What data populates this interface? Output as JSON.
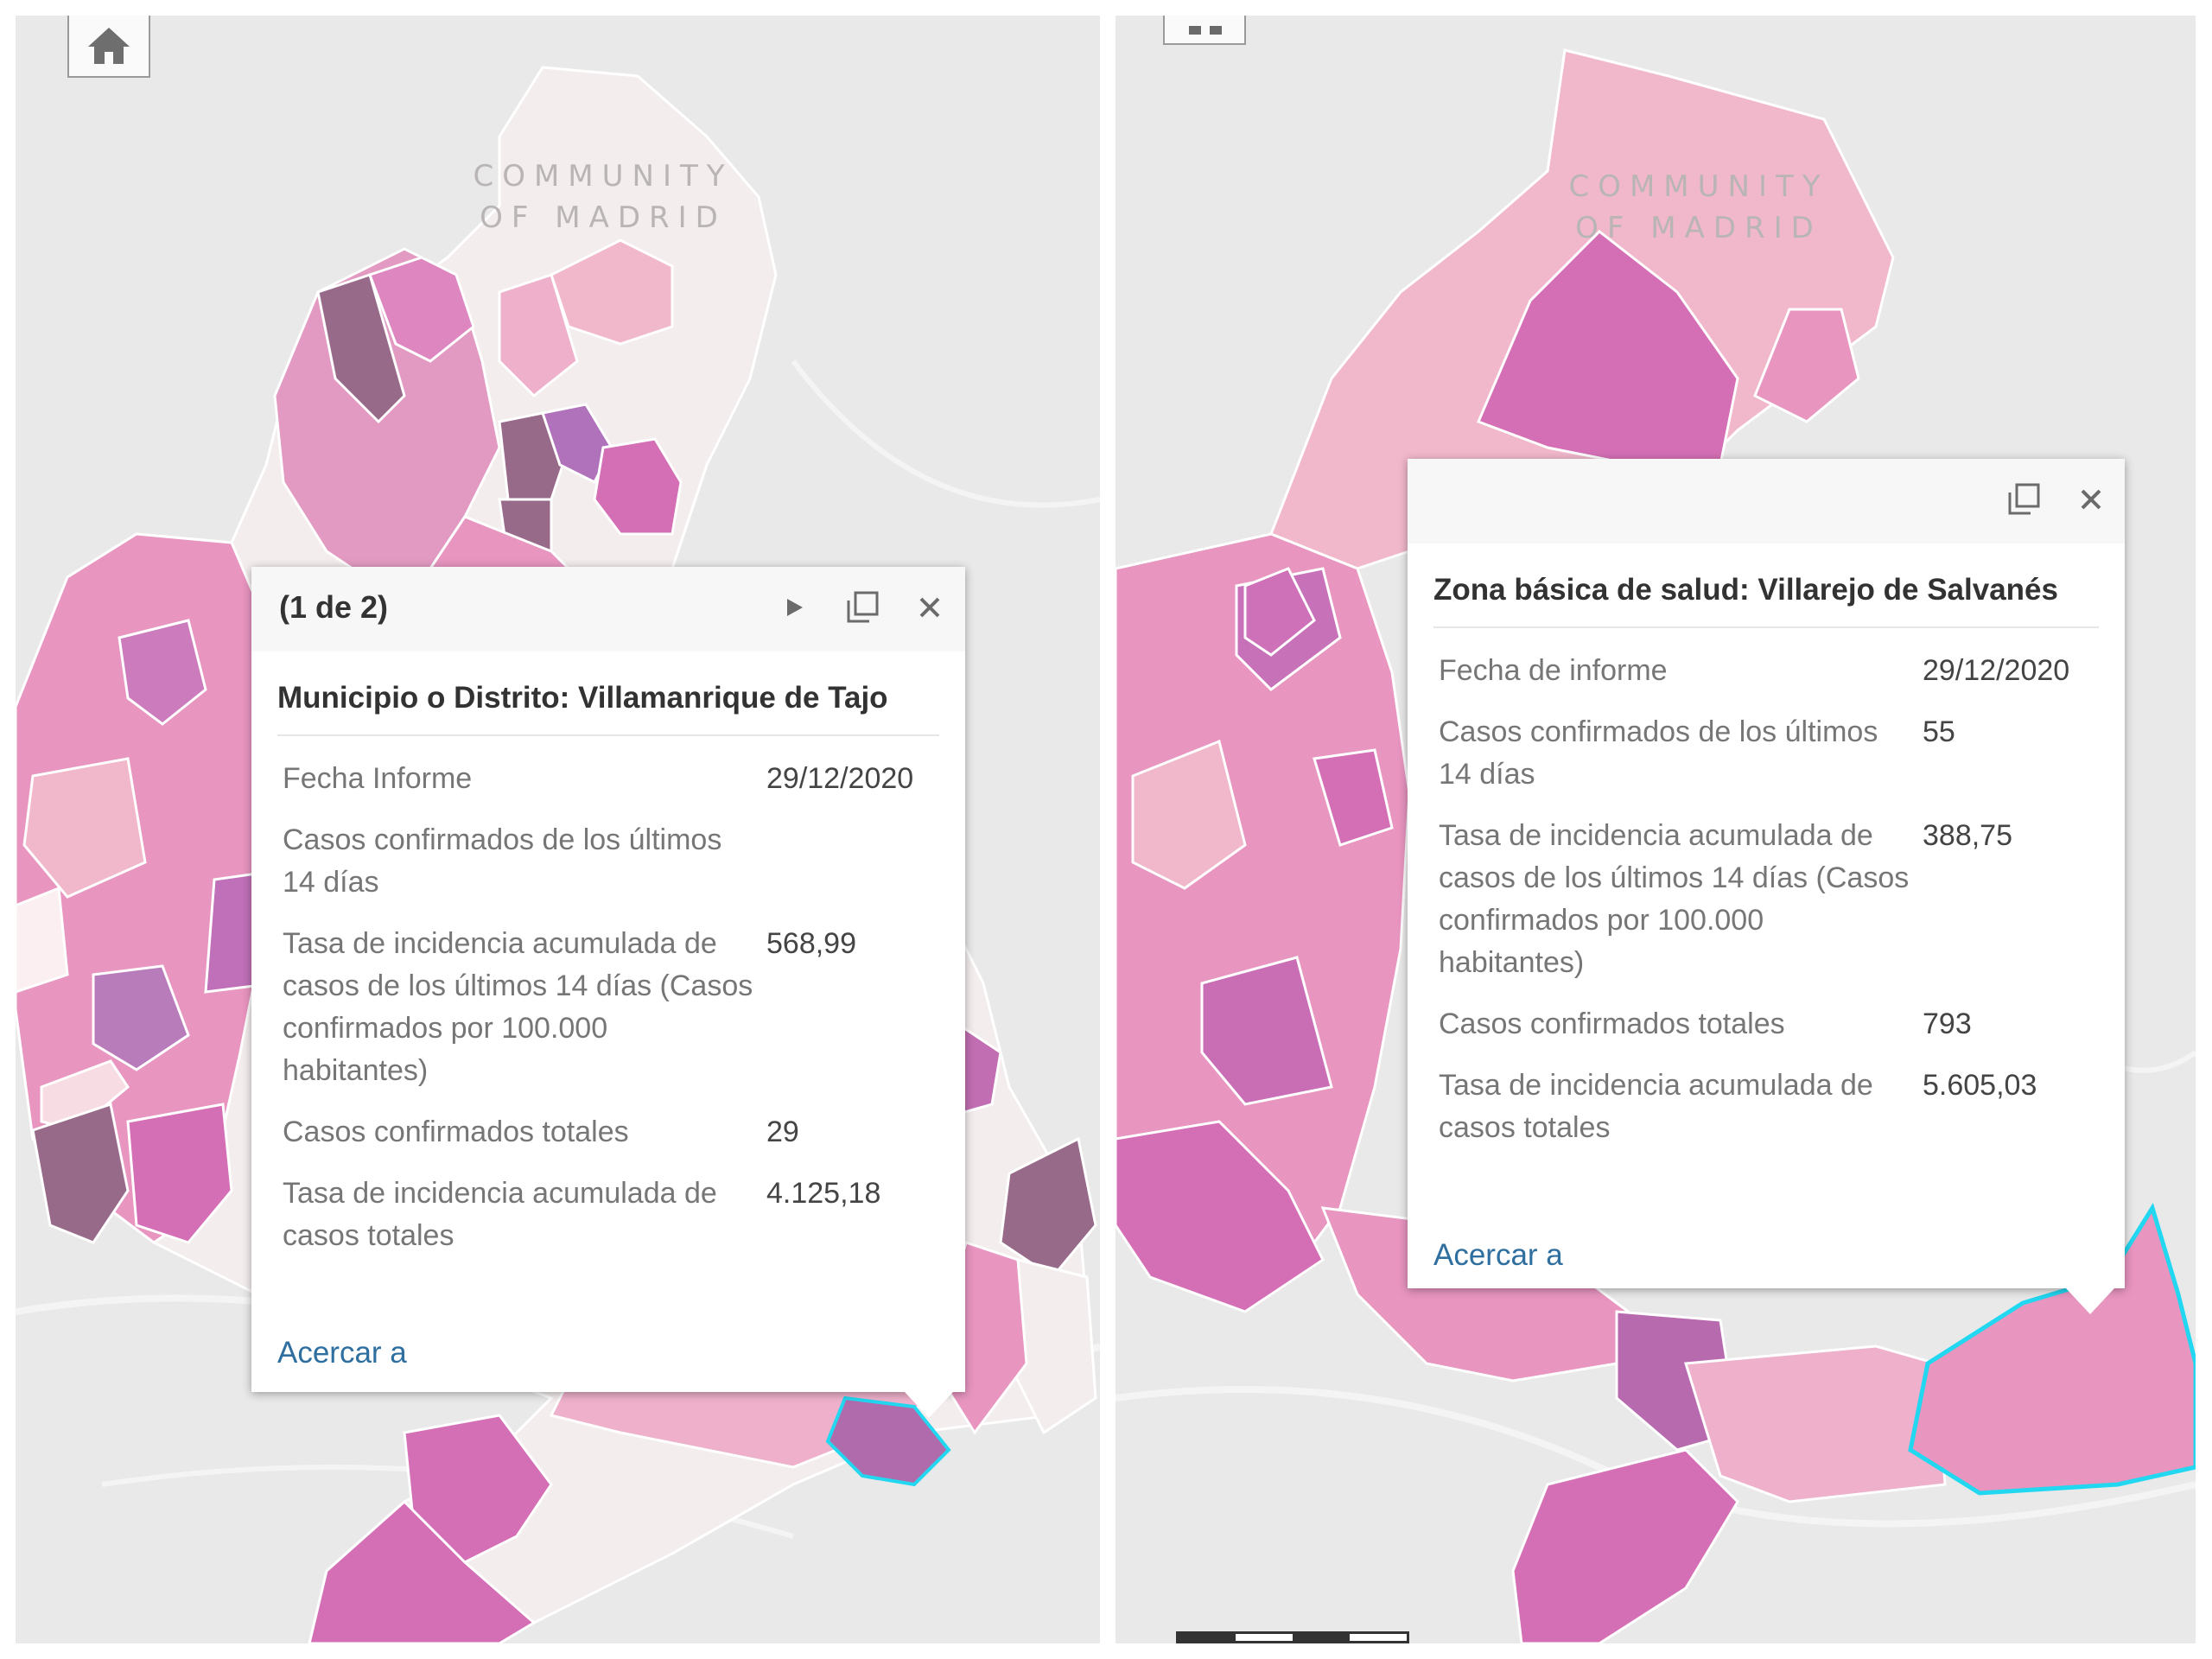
{
  "left_panel": {
    "region_label": [
      "COMMUNITY",
      "OF MADRID"
    ],
    "popup": {
      "pager": "(1 de 2)",
      "title": "Municipio o Distrito: Villamanrique de Tajo",
      "rows": [
        {
          "label": "Fecha Informe",
          "value": "29/12/2020"
        },
        {
          "label": "Casos confirmados de los últimos 14 días",
          "value": ""
        },
        {
          "label": "Tasa de incidencia acumulada de casos de los últimos 14 días (Casos confirmados por 100.000 habitantes)",
          "value": "568,99"
        },
        {
          "label": "Casos confirmados totales",
          "value": "29"
        },
        {
          "label": "Tasa de incidencia acumulada de casos totales",
          "value": "4.125,18"
        }
      ],
      "link": "Acercar a"
    },
    "icons": {
      "home": "home-icon",
      "next": "play-arrow-icon",
      "maximize": "maximize-icon",
      "close": "close-icon"
    }
  },
  "right_panel": {
    "region_label": [
      "COMMUNITY",
      "OF MADRID"
    ],
    "popup": {
      "title": "Zona básica de salud: Villarejo de Salvanés",
      "rows": [
        {
          "label": "Fecha de informe",
          "value": "29/12/2020"
        },
        {
          "label": "Casos confirmados de los últimos 14 días",
          "value": "55"
        },
        {
          "label": "Tasa de incidencia acumulada de casos de los últimos 14 días (Casos confirmados por 100.000 habitantes)",
          "value": "388,75"
        },
        {
          "label": "Casos confirmados totales",
          "value": "793"
        },
        {
          "label": "Tasa de incidencia acumulada de casos totales",
          "value": "5.605,03"
        }
      ],
      "link": "Acercar a"
    },
    "icons": {
      "grid": "grid-icon",
      "maximize": "maximize-icon",
      "close": "close-icon"
    }
  },
  "colors": {
    "background": "#e9e9e9",
    "region_lightest": "#f3eded",
    "region_light_pink": "#f1b8cb",
    "region_pink": "#e895c0",
    "region_magenta": "#d56fb5",
    "region_dark": "#986a8a",
    "highlight_outline": "#22d7f0",
    "link": "#2f6fa0"
  }
}
